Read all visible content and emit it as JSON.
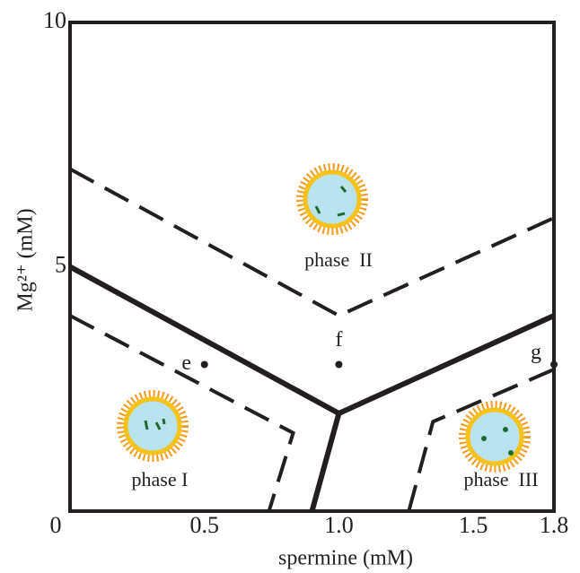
{
  "chart_data": {
    "type": "line",
    "x_label": "spermine  (mM)",
    "y_label": "Mg²⁺  (mM)",
    "xlim": [
      0,
      1.8
    ],
    "ylim": [
      0,
      10
    ],
    "xticks": [
      0,
      0.5,
      {
        "value": 1,
        "label": "1.0"
      },
      1.5,
      1.8
    ],
    "yticks": [
      5,
      10
    ],
    "series": [
      {
        "style": "solid",
        "color": "#231f20",
        "x": [
          0,
          1.0,
          1.8
        ],
        "y": [
          5.0,
          2.0,
          4.0
        ]
      },
      {
        "style": "solid",
        "color": "#231f20",
        "x": [
          1.0,
          0.9
        ],
        "y": [
          2.0,
          0
        ]
      },
      {
        "style": "dashed",
        "color": "#231f20",
        "x": [
          0,
          1.0,
          1.8
        ],
        "y": [
          7.0,
          4.0,
          6.0
        ]
      },
      {
        "style": "dashed",
        "color": "#231f20",
        "x": [
          0,
          0.83,
          0.74
        ],
        "y": [
          4.0,
          1.6,
          0
        ]
      },
      {
        "style": "dashed",
        "color": "#231f20",
        "x": [
          1.26,
          1.35,
          1.8
        ],
        "y": [
          0,
          1.83,
          2.9
        ]
      }
    ],
    "points": [
      {
        "label": "e",
        "x": 0.5,
        "y": 3.0
      },
      {
        "label": "f",
        "x": 1.0,
        "y": 3.0
      },
      {
        "label": "g",
        "x": 1.8,
        "y": 3.0
      }
    ],
    "annotations": [
      "phase  II",
      "phase I",
      "phase  III"
    ]
  }
}
